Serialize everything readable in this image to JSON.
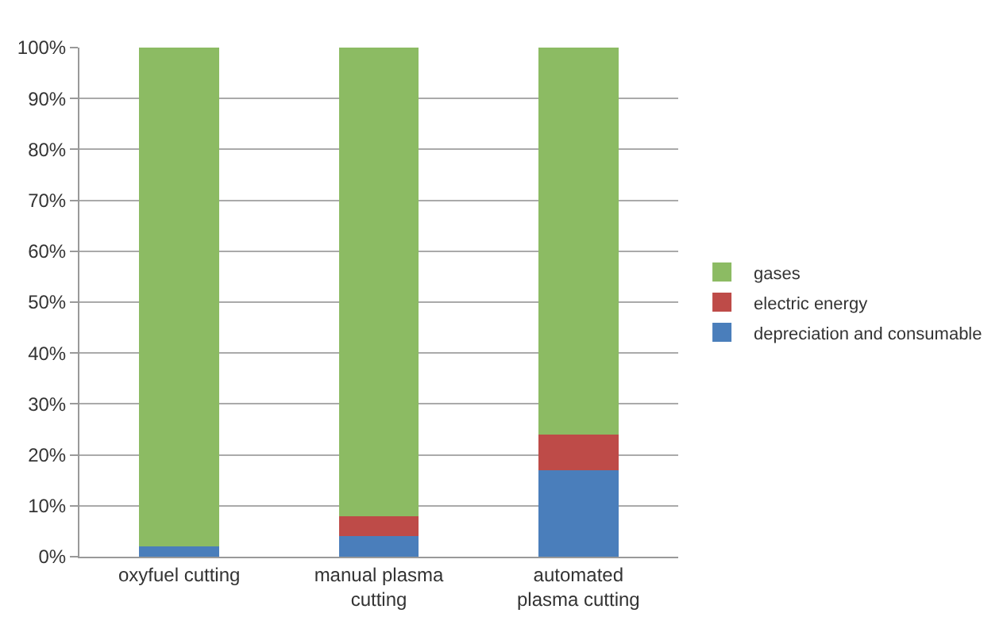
{
  "chart_data": {
    "type": "bar",
    "stacked": true,
    "categories": [
      "oxyfuel cutting",
      "manual plasma\ncutting",
      "automated\nplasma cutting"
    ],
    "series": [
      {
        "name": "depreciation and consumable",
        "color": "#4a7ebb",
        "values": [
          2,
          4,
          17
        ]
      },
      {
        "name": "electric energy",
        "color": "#be4b48",
        "values": [
          0,
          4,
          7
        ]
      },
      {
        "name": "gases",
        "color": "#8cbb63",
        "values": [
          98,
          92,
          76
        ]
      }
    ],
    "ylim": [
      0,
      100
    ],
    "yticks": [
      {
        "value": 0,
        "label": "0%"
      },
      {
        "value": 10,
        "label": "10%"
      },
      {
        "value": 20,
        "label": "20%"
      },
      {
        "value": 30,
        "label": "30%"
      },
      {
        "value": 40,
        "label": "40%"
      },
      {
        "value": 50,
        "label": "50%"
      },
      {
        "value": 60,
        "label": "60%"
      },
      {
        "value": 70,
        "label": "70%"
      },
      {
        "value": 80,
        "label": "80%"
      },
      {
        "value": 90,
        "label": "90%"
      },
      {
        "value": 100,
        "label": "100%"
      }
    ],
    "grid": "y",
    "legend": "right"
  }
}
